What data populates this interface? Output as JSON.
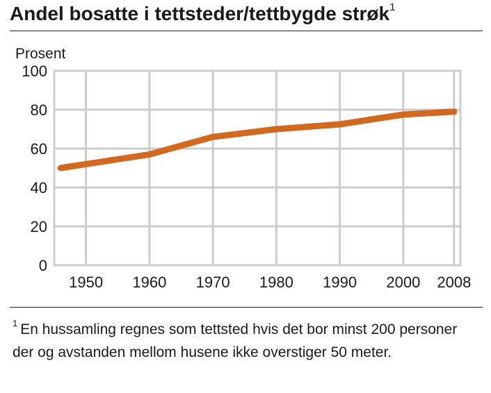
{
  "title": "Andel bosatte i tettsteder/tettbygde strøk",
  "title_marker": "1",
  "footnote": {
    "marker": "1",
    "text": "En hussamling regnes som tettsted hvis det bor minst 200 personer der og avstanden mellom husene ikke overstiger 50 meter."
  },
  "chart_data": {
    "type": "line",
    "title": "Andel bosatte i tettsteder/tettbygde strøk",
    "ylabel": "Prosent",
    "xlabel": "",
    "ylim": [
      0,
      100
    ],
    "xlim": [
      1945,
      2009
    ],
    "y_ticks": [
      0,
      20,
      40,
      60,
      80,
      100
    ],
    "x_ticks": [
      "1950",
      "1960",
      "1970",
      "1980",
      "1990",
      "2000",
      "2008"
    ],
    "x_tick_values": [
      1950,
      1960,
      1970,
      1980,
      1990,
      2000,
      2008
    ],
    "grid": true,
    "legend": "none",
    "series": [
      {
        "color": "#d2691e",
        "x": [
          1946,
          1960,
          1970,
          1980,
          1990,
          2000,
          2008
        ],
        "y": [
          50,
          57,
          66,
          70,
          72.5,
          77.5,
          79
        ]
      }
    ],
    "colors": {
      "plot_background": "#ffffff",
      "gridline": "#cccccc",
      "line": "#d2691e"
    }
  }
}
